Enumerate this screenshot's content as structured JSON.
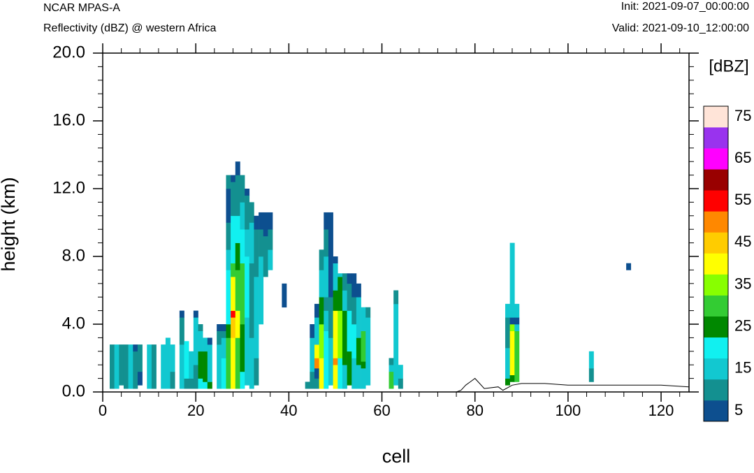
{
  "header": {
    "model": "NCAR MPAS-A",
    "field": "Reflectivity (dBZ) @ western Africa",
    "init": "Init: 2021-09-07_00:00:00",
    "valid": "Valid: 2021-09-10_12:00:00"
  },
  "chart_data": {
    "type": "heatmap",
    "title": "Reflectivity (dBZ) @ western Africa",
    "xlabel": "cell",
    "ylabel": "height (km)",
    "xlim": [
      0,
      126
    ],
    "ylim": [
      0,
      20
    ],
    "x_ticks": [
      "0",
      "20",
      "40",
      "60",
      "80",
      "100",
      "120"
    ],
    "y_ticks": [
      "0.0",
      "4.0",
      "8.0",
      "12.0",
      "16.0",
      "20.0"
    ],
    "cell_height_km": 0.4,
    "colorbar": {
      "unit": "[dBZ]",
      "levels": [
        5,
        10,
        15,
        20,
        25,
        30,
        35,
        40,
        45,
        50,
        55,
        60,
        65,
        70,
        75
      ],
      "tick_labels": [
        "5",
        "15",
        "25",
        "35",
        "45",
        "55",
        "65",
        "75"
      ],
      "colors": [
        "#0d4f8f",
        "#139090",
        "#12c8d0",
        "#11f0f0",
        "#008800",
        "#33cc33",
        "#88ff00",
        "#ffff00",
        "#ffcc00",
        "#ff8800",
        "#ff0000",
        "#990000",
        "#ff00ff",
        "#9933ee",
        "#ffe4d8"
      ]
    },
    "columns": [
      {
        "x": 2,
        "bins": [
          [
            0.2,
            2.8,
            10
          ]
        ]
      },
      {
        "x": 3,
        "bins": [
          [
            0.2,
            2.8,
            15
          ]
        ]
      },
      {
        "x": 4,
        "bins": [
          [
            0.4,
            2.8,
            10
          ]
        ]
      },
      {
        "x": 5,
        "bins": [
          [
            0.2,
            2.8,
            10
          ]
        ]
      },
      {
        "x": 6,
        "bins": [
          [
            0.2,
            2.8,
            15
          ]
        ]
      },
      {
        "x": 7,
        "bins": [
          [
            0.2,
            2.4,
            10
          ],
          [
            2.4,
            2.8,
            5
          ]
        ]
      },
      {
        "x": 8,
        "bins": [
          [
            0.4,
            1.2,
            5
          ],
          [
            1.2,
            2.8,
            10
          ]
        ]
      },
      {
        "x": 10,
        "bins": [
          [
            0.2,
            2.8,
            15
          ]
        ]
      },
      {
        "x": 11,
        "bins": [
          [
            0.2,
            2.8,
            10
          ]
        ]
      },
      {
        "x": 13,
        "bins": [
          [
            0.2,
            2.8,
            15
          ]
        ]
      },
      {
        "x": 14,
        "bins": [
          [
            0.2,
            3.2,
            15
          ]
        ]
      },
      {
        "x": 15,
        "bins": [
          [
            0.2,
            1.2,
            10
          ],
          [
            1.2,
            2.8,
            15
          ]
        ]
      },
      {
        "x": 17,
        "bins": [
          [
            0.2,
            2.8,
            15
          ],
          [
            2.8,
            4.4,
            10
          ],
          [
            4.4,
            4.8,
            5
          ]
        ]
      },
      {
        "x": 18,
        "bins": [
          [
            0.2,
            0.8,
            10
          ],
          [
            0.8,
            3.0,
            20
          ]
        ]
      },
      {
        "x": 19,
        "bins": [
          [
            0.2,
            0.8,
            10
          ],
          [
            0.8,
            2.4,
            15
          ]
        ]
      },
      {
        "x": 20,
        "bins": [
          [
            0.2,
            1.6,
            10
          ],
          [
            1.6,
            4.4,
            15
          ],
          [
            4.4,
            4.8,
            5
          ]
        ]
      },
      {
        "x": 21,
        "bins": [
          [
            0.2,
            0.8,
            20
          ],
          [
            0.8,
            2.4,
            25
          ],
          [
            2.4,
            3.6,
            15
          ],
          [
            3.6,
            4.0,
            10
          ]
        ]
      },
      {
        "x": 22,
        "bins": [
          [
            0.2,
            0.6,
            20
          ],
          [
            0.6,
            2.4,
            25
          ],
          [
            2.4,
            3.2,
            15
          ]
        ]
      },
      {
        "x": 23,
        "bins": [
          [
            0.2,
            0.6,
            25
          ],
          [
            0.6,
            2.8,
            15
          ],
          [
            2.8,
            3.2,
            5
          ]
        ]
      },
      {
        "x": 25,
        "bins": [
          [
            0.2,
            2.8,
            15
          ],
          [
            2.8,
            3.6,
            10
          ],
          [
            3.6,
            4.0,
            5
          ]
        ]
      },
      {
        "x": 26,
        "bins": [
          [
            0.2,
            2.0,
            20
          ],
          [
            2.0,
            3.2,
            15
          ],
          [
            3.2,
            3.6,
            10
          ],
          [
            3.6,
            4.0,
            5
          ]
        ]
      },
      {
        "x": 27,
        "bins": [
          [
            0.2,
            3.2,
            30
          ],
          [
            3.2,
            4.0,
            25
          ],
          [
            4.0,
            7.2,
            20
          ],
          [
            7.2,
            8.4,
            15
          ],
          [
            8.4,
            10.0,
            10
          ],
          [
            10.0,
            12.0,
            5
          ],
          [
            12.0,
            12.8,
            10
          ]
        ]
      },
      {
        "x": 28,
        "bins": [
          [
            0.2,
            3.2,
            40
          ],
          [
            3.2,
            4.4,
            45
          ],
          [
            4.4,
            4.8,
            55
          ],
          [
            4.8,
            6.8,
            40
          ],
          [
            6.8,
            7.6,
            30
          ],
          [
            7.6,
            10.4,
            20
          ],
          [
            10.4,
            12.4,
            10
          ],
          [
            12.4,
            12.8,
            5
          ]
        ]
      },
      {
        "x": 29,
        "bins": [
          [
            0.2,
            3.2,
            30
          ],
          [
            3.2,
            4.8,
            40
          ],
          [
            4.8,
            7.2,
            30
          ],
          [
            7.2,
            8.8,
            25
          ],
          [
            8.8,
            10.4,
            20
          ],
          [
            10.4,
            12.8,
            10
          ],
          [
            12.8,
            13.6,
            5
          ]
        ]
      },
      {
        "x": 30,
        "bins": [
          [
            0.2,
            1.2,
            20
          ],
          [
            1.2,
            4.0,
            25
          ],
          [
            4.0,
            7.6,
            30
          ],
          [
            7.6,
            9.6,
            20
          ],
          [
            9.6,
            11.2,
            15
          ],
          [
            11.2,
            12.8,
            10
          ]
        ]
      },
      {
        "x": 31,
        "bins": [
          [
            0.4,
            4.4,
            15
          ],
          [
            4.4,
            8.0,
            20
          ],
          [
            8.0,
            9.6,
            15
          ],
          [
            9.6,
            11.6,
            10
          ],
          [
            11.6,
            12.0,
            5
          ]
        ]
      },
      {
        "x": 32,
        "bins": [
          [
            0.2,
            3.2,
            15
          ],
          [
            3.2,
            7.6,
            10
          ],
          [
            7.6,
            10.0,
            15
          ],
          [
            10.0,
            11.2,
            10
          ]
        ]
      },
      {
        "x": 33,
        "bins": [
          [
            0.4,
            2.0,
            10
          ],
          [
            2.0,
            6.8,
            15
          ],
          [
            6.8,
            9.6,
            10
          ],
          [
            9.6,
            10.4,
            5
          ]
        ]
      },
      {
        "x": 34,
        "bins": [
          [
            4.0,
            8.0,
            15
          ],
          [
            8.0,
            9.6,
            10
          ],
          [
            9.6,
            10.6,
            5
          ]
        ]
      },
      {
        "x": 35,
        "bins": [
          [
            6.8,
            9.2,
            10
          ],
          [
            9.2,
            10.6,
            5
          ]
        ]
      },
      {
        "x": 36,
        "bins": [
          [
            7.2,
            8.4,
            15
          ],
          [
            8.4,
            9.6,
            10
          ],
          [
            9.6,
            10.6,
            5
          ]
        ]
      },
      {
        "x": 39,
        "bins": [
          [
            5.0,
            6.4,
            5
          ]
        ]
      },
      {
        "x": 44,
        "bins": [
          [
            0.2,
            0.6,
            10
          ]
        ]
      },
      {
        "x": 45,
        "bins": [
          [
            0.2,
            1.2,
            10
          ],
          [
            1.2,
            3.2,
            15
          ],
          [
            3.2,
            4.0,
            5
          ]
        ]
      },
      {
        "x": 46,
        "bins": [
          [
            0.2,
            0.8,
            10
          ],
          [
            0.8,
            1.4,
            5
          ],
          [
            1.4,
            2.0,
            50
          ],
          [
            2.0,
            2.8,
            40
          ],
          [
            2.8,
            4.4,
            15
          ],
          [
            4.4,
            5.2,
            5
          ]
        ]
      },
      {
        "x": 47,
        "bins": [
          [
            0.2,
            2.0,
            40
          ],
          [
            2.0,
            4.0,
            35
          ],
          [
            4.0,
            5.6,
            25
          ],
          [
            5.6,
            7.2,
            15
          ],
          [
            7.2,
            8.4,
            10
          ]
        ]
      },
      {
        "x": 48,
        "bins": [
          [
            0.2,
            3.6,
            20
          ],
          [
            3.6,
            4.8,
            15
          ],
          [
            4.8,
            5.6,
            10
          ],
          [
            5.6,
            8.0,
            15
          ],
          [
            8.0,
            9.6,
            10
          ],
          [
            9.6,
            10.6,
            5
          ]
        ]
      },
      {
        "x": 49,
        "bins": [
          [
            0.4,
            3.2,
            15
          ],
          [
            3.2,
            5.6,
            10
          ],
          [
            5.6,
            10.6,
            5
          ]
        ]
      },
      {
        "x": 50,
        "bins": [
          [
            0.2,
            1.6,
            40
          ],
          [
            1.6,
            2.0,
            50
          ],
          [
            2.0,
            4.8,
            40
          ],
          [
            4.8,
            6.0,
            25
          ],
          [
            6.0,
            7.6,
            15
          ],
          [
            7.6,
            8.0,
            5
          ]
        ]
      },
      {
        "x": 51,
        "bins": [
          [
            0.2,
            2.0,
            20
          ],
          [
            2.0,
            4.8,
            35
          ],
          [
            4.8,
            6.8,
            25
          ],
          [
            6.8,
            7.0,
            15
          ]
        ]
      },
      {
        "x": 52,
        "bins": [
          [
            0.2,
            1.6,
            15
          ],
          [
            1.6,
            4.8,
            25
          ],
          [
            4.8,
            6.0,
            15
          ],
          [
            6.0,
            7.0,
            10
          ]
        ]
      },
      {
        "x": 53,
        "bins": [
          [
            0.4,
            2.4,
            25
          ],
          [
            2.4,
            4.8,
            20
          ],
          [
            4.8,
            6.4,
            10
          ],
          [
            6.4,
            7.0,
            5
          ]
        ]
      },
      {
        "x": 54,
        "bins": [
          [
            0.2,
            2.0,
            15
          ],
          [
            2.0,
            4.0,
            20
          ],
          [
            4.0,
            5.6,
            10
          ],
          [
            5.6,
            7.0,
            5
          ]
        ]
      },
      {
        "x": 55,
        "bins": [
          [
            0.2,
            1.6,
            15
          ],
          [
            1.6,
            3.2,
            25
          ],
          [
            3.2,
            5.6,
            15
          ],
          [
            5.6,
            6.4,
            5
          ]
        ]
      },
      {
        "x": 56,
        "bins": [
          [
            0.2,
            1.4,
            15
          ],
          [
            1.4,
            1.8,
            25
          ],
          [
            1.8,
            3.6,
            30
          ],
          [
            3.6,
            5.0,
            15
          ]
        ]
      },
      {
        "x": 57,
        "bins": [
          [
            0.4,
            4.4,
            15
          ],
          [
            4.4,
            5.0,
            10
          ]
        ]
      },
      {
        "x": 62,
        "bins": [
          [
            0.2,
            1.2,
            30
          ],
          [
            1.2,
            1.6,
            15
          ],
          [
            1.6,
            2.0,
            10
          ]
        ]
      },
      {
        "x": 63,
        "bins": [
          [
            0.4,
            1.2,
            15
          ],
          [
            1.2,
            5.2,
            15
          ],
          [
            5.2,
            6.0,
            10
          ]
        ]
      },
      {
        "x": 64,
        "bins": [
          [
            0.2,
            0.8,
            10
          ],
          [
            0.8,
            1.6,
            15
          ]
        ]
      },
      {
        "x": 87,
        "bins": [
          [
            0.4,
            0.8,
            25
          ],
          [
            0.8,
            2.6,
            15
          ],
          [
            2.6,
            4.4,
            10
          ],
          [
            4.4,
            5.2,
            15
          ]
        ]
      },
      {
        "x": 88,
        "bins": [
          [
            0.6,
            1.0,
            25
          ],
          [
            1.0,
            3.6,
            40
          ],
          [
            3.6,
            4.0,
            35
          ],
          [
            4.0,
            4.4,
            5
          ],
          [
            4.4,
            4.8,
            15
          ],
          [
            4.8,
            8.8,
            15
          ]
        ]
      },
      {
        "x": 89,
        "bins": [
          [
            0.6,
            3.6,
            30
          ],
          [
            3.6,
            4.0,
            15
          ],
          [
            4.0,
            4.4,
            5
          ],
          [
            4.4,
            5.2,
            15
          ]
        ]
      },
      {
        "x": 105,
        "bins": [
          [
            0.6,
            1.4,
            10
          ],
          [
            1.4,
            2.4,
            15
          ]
        ]
      },
      {
        "x": 113,
        "bins": [
          [
            7.2,
            7.6,
            5
          ]
        ]
      }
    ],
    "terrain_km": [
      [
        0,
        0.0
      ],
      [
        76,
        0.0
      ],
      [
        77,
        0.1
      ],
      [
        78,
        0.4
      ],
      [
        79,
        0.6
      ],
      [
        80,
        0.8
      ],
      [
        81,
        0.5
      ],
      [
        82,
        0.2
      ],
      [
        85,
        0.3
      ],
      [
        86,
        0.1
      ],
      [
        88,
        0.4
      ],
      [
        90,
        0.5
      ],
      [
        95,
        0.5
      ],
      [
        100,
        0.4
      ],
      [
        105,
        0.4
      ],
      [
        110,
        0.4
      ],
      [
        120,
        0.4
      ],
      [
        126,
        0.3
      ]
    ]
  }
}
